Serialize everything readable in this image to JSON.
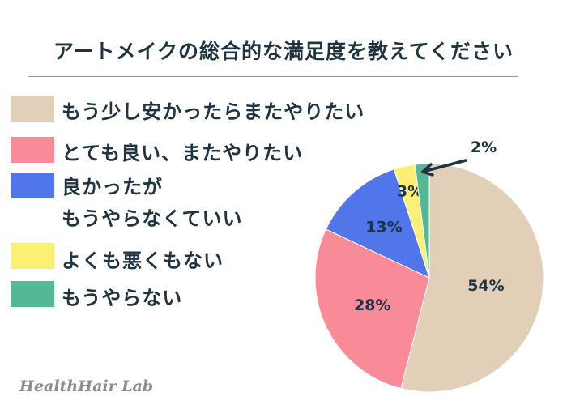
{
  "chart_data": {
    "type": "pie",
    "title": "アートメイクの総合的な満足度を教えてください",
    "start": "top",
    "direction": "clockwise",
    "slices": [
      {
        "label": "もう少し安かったらまたやりたい",
        "value": 54,
        "data_label": "54%",
        "color": "#e1cfb7"
      },
      {
        "label": "とても良い、またやりたい",
        "value": 28,
        "data_label": "28%",
        "color": "#f98a98"
      },
      {
        "label_lines": [
          "良かったが",
          "もうやらなくていい"
        ],
        "label": "良かったがもうやらなくていい",
        "value": 13,
        "data_label": "13%",
        "color": "#5176ea"
      },
      {
        "label": "よくも悪くもない",
        "value": 3,
        "data_label": "3%",
        "color": "#fbef74"
      },
      {
        "label": "もうやらない",
        "value": 2,
        "data_label": "2%",
        "color": "#55b894"
      }
    ],
    "legend_position": "left"
  },
  "watermark": "HealthHair Lab"
}
